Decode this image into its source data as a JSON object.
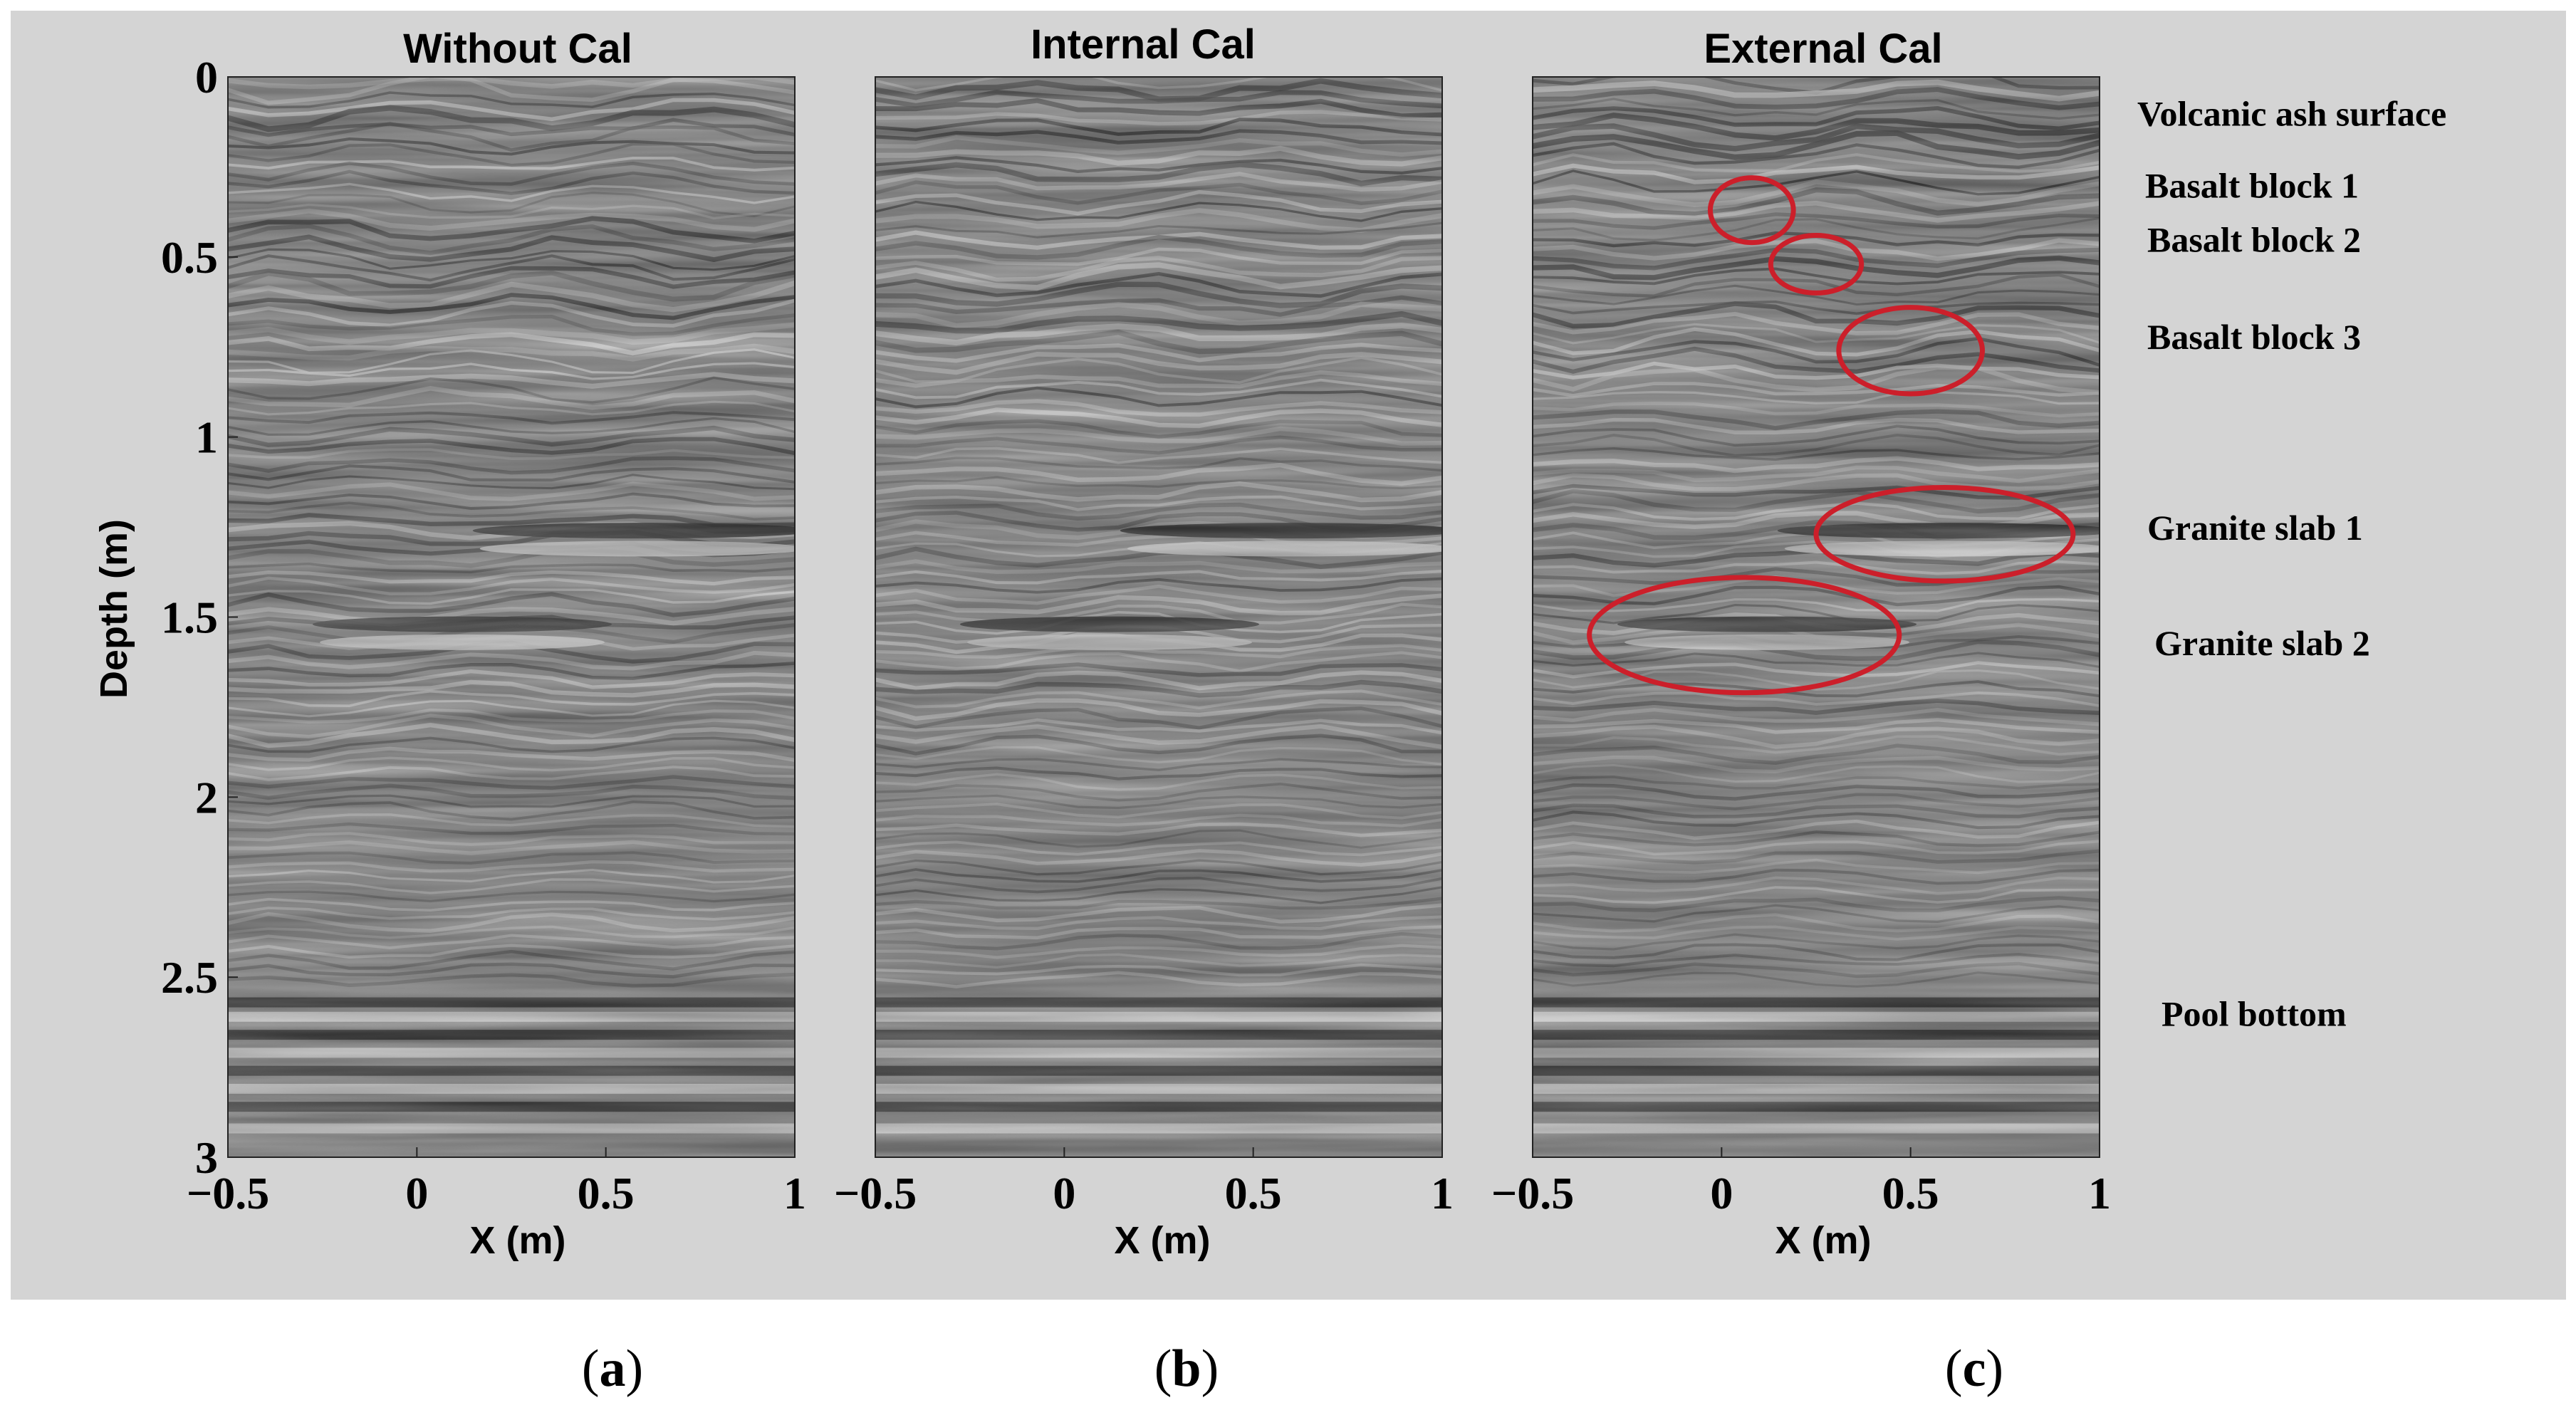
{
  "figure": {
    "background_color": "#d4d4d4",
    "ellipse_color": "#cc1f2a",
    "panels": [
      {
        "title": "Without Cal",
        "caption_open": "(",
        "caption_letter": "a",
        "caption_close": ")"
      },
      {
        "title": "Internal Cal",
        "caption_open": "(",
        "caption_letter": "b",
        "caption_close": ")"
      },
      {
        "title": "External Cal",
        "caption_open": "(",
        "caption_letter": "c",
        "caption_close": ")"
      }
    ],
    "annotations": [
      "Volcanic ash surface",
      "Basalt block 1",
      "Basalt block 2",
      "Basalt block 3",
      "Granite slab 1",
      "Granite slab 2",
      "Pool bottom"
    ]
  },
  "chart_data": [
    {
      "type": "heatmap",
      "title": "Without Cal",
      "xlabel": "X (m)",
      "ylabel": "Depth (m)",
      "xlim": [
        -0.5,
        1
      ],
      "ylim": [
        0,
        3
      ],
      "xticks": [
        "−0.5",
        "0",
        "0.5",
        "1"
      ],
      "yticks": [
        "0",
        "0.5",
        "1",
        "1.5",
        "2",
        "2.5",
        "3"
      ],
      "colormap": "grayscale"
    },
    {
      "type": "heatmap",
      "title": "Internal Cal",
      "xlabel": "X (m)",
      "ylabel": "",
      "xlim": [
        -0.5,
        1
      ],
      "ylim": [
        0,
        3
      ],
      "xticks": [
        "−0.5",
        "0",
        "0.5",
        "1"
      ],
      "yticks": [],
      "colormap": "grayscale"
    },
    {
      "type": "heatmap",
      "title": "External Cal",
      "xlabel": "X (m)",
      "ylabel": "",
      "xlim": [
        -0.5,
        1
      ],
      "ylim": [
        0,
        3
      ],
      "xticks": [
        "−0.5",
        "0",
        "0.5",
        "1"
      ],
      "yticks": [],
      "colormap": "grayscale",
      "targets": [
        {
          "label": "Basalt block 1",
          "x": 0.08,
          "depth": 0.37,
          "rx": 0.11,
          "rdepth": 0.09
        },
        {
          "label": "Basalt block 2",
          "x": 0.25,
          "depth": 0.52,
          "rx": 0.12,
          "rdepth": 0.08
        },
        {
          "label": "Basalt block 3",
          "x": 0.5,
          "depth": 0.76,
          "rx": 0.19,
          "rdepth": 0.12
        },
        {
          "label": "Granite slab 1",
          "x": 0.59,
          "depth": 1.27,
          "rx": 0.34,
          "rdepth": 0.13
        },
        {
          "label": "Granite slab 2",
          "x": 0.06,
          "depth": 1.55,
          "rx": 0.41,
          "rdepth": 0.16
        }
      ],
      "annotation_depths": [
        {
          "label": "Volcanic ash surface",
          "depth": 0.1
        },
        {
          "label": "Basalt block 1",
          "depth": 0.3
        },
        {
          "label": "Basalt block 2",
          "depth": 0.45
        },
        {
          "label": "Basalt block 3",
          "depth": 0.72
        },
        {
          "label": "Granite slab 1",
          "depth": 1.25
        },
        {
          "label": "Granite slab 2",
          "depth": 1.57
        },
        {
          "label": "Pool bottom",
          "depth": 2.6
        }
      ]
    }
  ]
}
